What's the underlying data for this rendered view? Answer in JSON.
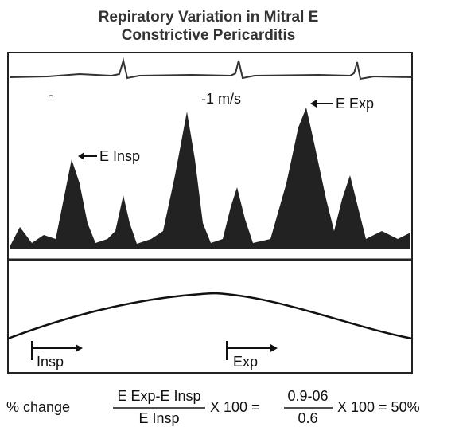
{
  "title": {
    "line1": "Repiratory Variation in Mitral E",
    "line2": "Constrictive Pericarditis"
  },
  "labels": {
    "scale": "-1 m/s",
    "e_exp": "E Exp",
    "e_insp": "E Insp",
    "insp": "Insp",
    "exp": "Exp"
  },
  "formula": {
    "lead": "% change",
    "num1": "E Exp-E Insp",
    "den1": "E Insp",
    "mid": "X 100 =",
    "num2": "0.9-06",
    "den2": "0.6",
    "tail": "X 100 = 50%"
  }
}
